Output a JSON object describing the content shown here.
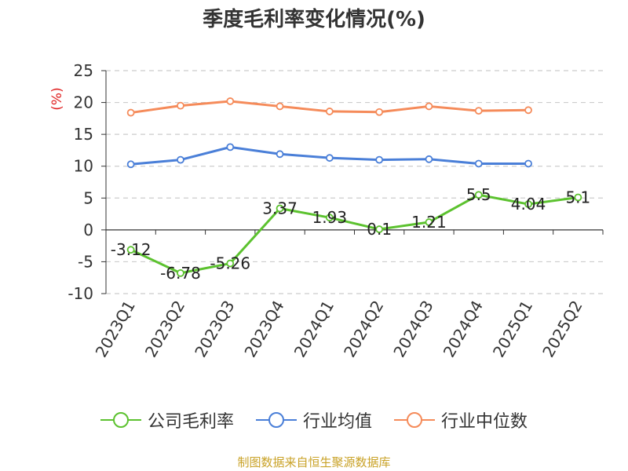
{
  "title": "季度毛利率变化情况(%)",
  "source": "制图数据来自恒生聚源数据库",
  "chart_data": {
    "type": "line",
    "title": "季度毛利率变化情况(%)",
    "ylabel": "(%)",
    "ylim": [
      -10,
      25
    ],
    "yticks": [
      25,
      20,
      15,
      10,
      5,
      0,
      -5,
      -10
    ],
    "grid": true,
    "legend_position": "bottom",
    "categories": [
      "2023Q1",
      "2023Q2",
      "2023Q3",
      "2023Q4",
      "2024Q1",
      "2024Q2",
      "2024Q3",
      "2024Q4",
      "2025Q1",
      "2025Q2"
    ],
    "series": [
      {
        "name": "公司毛利率",
        "color": "#5cc22f",
        "values": [
          -3.12,
          -6.78,
          -5.26,
          3.37,
          1.93,
          0.1,
          1.21,
          5.5,
          4.04,
          5.1
        ],
        "labels": [
          "-3.12",
          "-6.78",
          "-5.26",
          "3.37",
          "1.93",
          "0.1",
          "1.21",
          "5.5",
          "4.04",
          "5.1"
        ]
      },
      {
        "name": "行业均值",
        "color": "#4a7fd8",
        "values": [
          10.3,
          11.0,
          13.0,
          11.9,
          11.3,
          11.0,
          11.1,
          10.4,
          10.4,
          null
        ]
      },
      {
        "name": "行业中位数",
        "color": "#f58b5a",
        "values": [
          18.4,
          19.5,
          20.2,
          19.4,
          18.6,
          18.5,
          19.4,
          18.7,
          18.8,
          null
        ]
      }
    ]
  }
}
